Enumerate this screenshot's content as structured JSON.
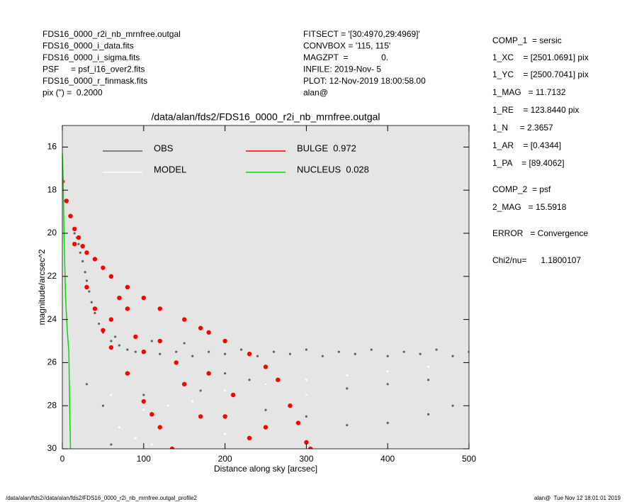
{
  "header": {
    "left": [
      "FDS16_0000_r2i_nb_mrnfree.outgal",
      "FDS16_0000_i_data.fits",
      "FDS16_0000_i_sigma.fits",
      "PSF     = psf_i16_over2.fits",
      "FDS16_0000_r_finmask.fits",
      "pix (\") =  0.2000"
    ],
    "middle": [
      "FITSECT = '[30:4970,29:4969]'",
      "CONVBOX = '115, 115'",
      "MAGZPT  =              0.",
      "INFILE: 2019-Nov- 5",
      "PLOT: 12-Nov-2019 18:00:58.00",
      "alan@"
    ],
    "right": [
      "COMP_1  = sersic",
      "1_XC    = [2501.0691] pix",
      "1_YC    = [2500.7041] pix",
      "1_MAG   = 11.7132",
      "1_RE    = 123.8440 pix",
      "1_N     = 2.3657",
      "1_AR    = [0.4344]",
      "1_PA    = [89.4062]",
      "COMP_2  = psf",
      "2_MAG   = 15.5918",
      "ERROR   = Convergence",
      "Chi2/nu=      1.1800107"
    ]
  },
  "footer": {
    "left": "/data/alan/fds2//data/alan/fds2/FDS16_0000_r2i_nb_mrnfree.outgal_profile2",
    "right": "alan@  Tue Nov 12 18:01:01 2019"
  },
  "chart_data": {
    "type": "scatter",
    "title": "/data/alan/fds2/FDS16_0000_r2i_nb_mrnfree.outgal",
    "xlabel": "Distance along sky [arcsec]",
    "ylabel": "magnitude/arcsec^2",
    "xlim": [
      0,
      500
    ],
    "xticks": [
      0,
      100,
      200,
      300,
      400,
      500
    ],
    "ylim": [
      15,
      30
    ],
    "y_inverted": true,
    "yticks": [
      16,
      18,
      20,
      22,
      24,
      26,
      28,
      30
    ],
    "series": [
      {
        "name": "OBS",
        "color": "#606060",
        "style": "points",
        "x": [
          15,
          18,
          20,
          22,
          25,
          28,
          30,
          33,
          36,
          40,
          45,
          50,
          60,
          70,
          80,
          90,
          100,
          120,
          140,
          160,
          180,
          200,
          220,
          240,
          260,
          280,
          300,
          320,
          340,
          360,
          380,
          400,
          420,
          440,
          460,
          480,
          500,
          65,
          110,
          150,
          200,
          250,
          300,
          350,
          400,
          450,
          480,
          100,
          60,
          30,
          50,
          300,
          400,
          250,
          350,
          450,
          170,
          230
        ],
        "values": [
          20.0,
          20.2,
          20.5,
          20.9,
          21.3,
          21.8,
          22.2,
          22.7,
          23.2,
          23.7,
          24.2,
          24.6,
          25.0,
          25.2,
          25.4,
          25.5,
          25.5,
          25.6,
          25.5,
          25.7,
          25.5,
          25.6,
          25.4,
          25.7,
          25.5,
          25.6,
          25.4,
          25.7,
          25.5,
          25.6,
          25.4,
          25.7,
          25.5,
          25.6,
          25.4,
          25.7,
          25.5,
          24.8,
          25.0,
          25.1,
          26.5,
          27.0,
          27.5,
          27.2,
          27.0,
          26.8,
          28.0,
          27.5,
          29.8,
          27.0,
          28.0,
          28.5,
          28.8,
          28.2,
          28.9,
          28.4,
          27.3,
          26.8
        ]
      },
      {
        "name": "MODEL",
        "color": "#ffffff",
        "style": "points",
        "x": [
          60,
          70,
          90,
          100,
          110,
          130,
          160,
          200,
          200,
          250,
          300,
          300,
          350,
          400,
          450
        ],
        "values": [
          27.5,
          29.0,
          29.5,
          28.2,
          29.8,
          28.0,
          27.8,
          27.3,
          29.3,
          27.0,
          26.8,
          27.5,
          26.6,
          26.4,
          26.2
        ]
      },
      {
        "name": "BULGE  0.972",
        "color": "#ff0000",
        "style": "points",
        "x": [
          0,
          5,
          10,
          15,
          20,
          25,
          30,
          40,
          50,
          60,
          80,
          100,
          120,
          150,
          170,
          180,
          200,
          230,
          250,
          265,
          280,
          290,
          300,
          305,
          15,
          30,
          40,
          50,
          60,
          80,
          100,
          110,
          120,
          135,
          60,
          80,
          100,
          120,
          150,
          180,
          200,
          230,
          250,
          170,
          210,
          140,
          90,
          70
        ],
        "values": [
          17.6,
          18.5,
          19.2,
          19.8,
          20.2,
          20.6,
          20.9,
          21.2,
          21.6,
          22.0,
          22.5,
          23.0,
          23.5,
          24.0,
          24.4,
          24.6,
          25.0,
          25.6,
          26.2,
          26.8,
          28.0,
          28.8,
          29.7,
          30.0,
          20.5,
          22.5,
          23.5,
          24.5,
          25.3,
          26.5,
          27.8,
          28.4,
          29.0,
          30.0,
          24.0,
          23.5,
          25.5,
          25.0,
          27.0,
          26.5,
          28.5,
          29.5,
          29.0,
          28.5,
          27.5,
          26.0,
          24.8,
          23.0
        ]
      },
      {
        "name": "NUCLEUS  0.028",
        "color": "#00dd00",
        "style": "line",
        "x": [
          0,
          1,
          2,
          4,
          6,
          8,
          9,
          10
        ],
        "values": [
          16.3,
          17.5,
          20.0,
          23.0,
          24.5,
          25.5,
          28.0,
          30.0
        ]
      }
    ]
  }
}
